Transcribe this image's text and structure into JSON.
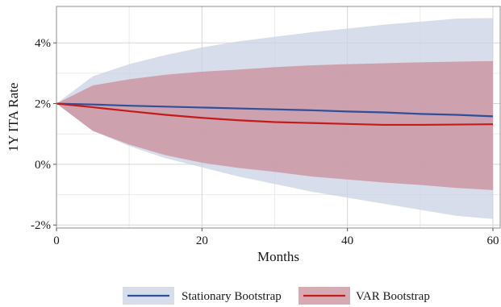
{
  "chart_data": {
    "type": "line",
    "title": "",
    "xlabel": "Months",
    "ylabel": "1Y ITA Rate",
    "xlim": [
      0,
      61
    ],
    "ylim": [
      -2.1,
      5.2
    ],
    "x_ticks": [
      0,
      20,
      40,
      60
    ],
    "x_tick_labels": [
      "0",
      "20",
      "40",
      "60"
    ],
    "y_ticks": [
      -2,
      0,
      2,
      4
    ],
    "y_tick_labels": [
      "-2%",
      "0%",
      "2%",
      "4%"
    ],
    "grid": true,
    "legend_position": "bottom",
    "x": [
      0,
      5,
      10,
      15,
      20,
      25,
      30,
      35,
      40,
      45,
      50,
      55,
      60
    ],
    "series": [
      {
        "name": "Stationary Bootstrap",
        "color": "#2e4f9a",
        "band_color": "#c9d1e3",
        "values": [
          2.0,
          1.97,
          1.93,
          1.9,
          1.87,
          1.84,
          1.81,
          1.78,
          1.74,
          1.71,
          1.66,
          1.63,
          1.58
        ],
        "upper": [
          2.0,
          2.9,
          3.3,
          3.6,
          3.85,
          4.05,
          4.2,
          4.35,
          4.47,
          4.6,
          4.7,
          4.8,
          4.82
        ],
        "lower": [
          2.0,
          1.1,
          0.6,
          0.2,
          -0.1,
          -0.4,
          -0.65,
          -0.9,
          -1.1,
          -1.3,
          -1.5,
          -1.7,
          -1.8
        ]
      },
      {
        "name": "VAR Bootstrap",
        "color": "#c41a1a",
        "band_color": "#c98d99",
        "values": [
          2.0,
          1.88,
          1.75,
          1.63,
          1.53,
          1.45,
          1.39,
          1.36,
          1.33,
          1.3,
          1.3,
          1.31,
          1.32
        ],
        "upper": [
          2.0,
          2.6,
          2.8,
          2.95,
          3.05,
          3.12,
          3.2,
          3.26,
          3.3,
          3.33,
          3.36,
          3.38,
          3.4
        ],
        "lower": [
          2.0,
          1.1,
          0.65,
          0.3,
          0.05,
          -0.12,
          -0.25,
          -0.4,
          -0.5,
          -0.6,
          -0.68,
          -0.78,
          -0.85
        ]
      }
    ]
  }
}
